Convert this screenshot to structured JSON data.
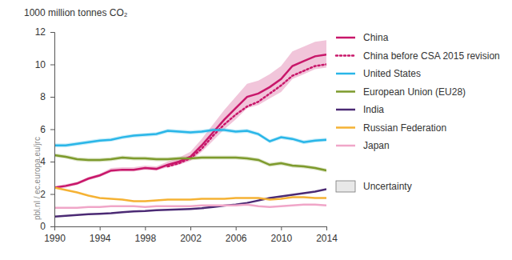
{
  "chart_data": {
    "type": "line",
    "ylabel": "1000 million tonnes CO₂",
    "source": "pbl.nl / ec.europa.eu/jrc",
    "uncertainty_label": "Uncertainty",
    "x": [
      1990,
      1991,
      1992,
      1993,
      1994,
      1995,
      1996,
      1997,
      1998,
      1999,
      2000,
      2001,
      2002,
      2003,
      2004,
      2005,
      2006,
      2007,
      2008,
      2009,
      2010,
      2011,
      2012,
      2013,
      2014
    ],
    "xlim": [
      1990,
      2014
    ],
    "xticks": [
      1990,
      1994,
      1998,
      2002,
      2006,
      2010,
      2014
    ],
    "ylim": [
      0,
      12
    ],
    "yticks": [
      0,
      2,
      4,
      6,
      8,
      10,
      12
    ],
    "grid": false,
    "series": [
      {
        "name": "China",
        "color": "#c8176a",
        "line_style": "solid",
        "values": [
          2.4,
          2.5,
          2.65,
          2.95,
          3.15,
          3.45,
          3.5,
          3.5,
          3.6,
          3.55,
          3.8,
          4.0,
          4.3,
          5.0,
          5.8,
          6.6,
          7.3,
          8.0,
          8.2,
          8.6,
          9.1,
          9.9,
          10.2,
          10.5,
          10.6
        ],
        "lower": [
          2.3,
          2.4,
          2.55,
          2.85,
          3.05,
          3.35,
          3.4,
          3.4,
          3.5,
          3.45,
          3.65,
          3.8,
          4.05,
          4.6,
          5.3,
          6.0,
          6.6,
          7.3,
          7.5,
          7.9,
          8.3,
          9.1,
          9.4,
          9.7,
          9.8
        ],
        "upper": [
          2.5,
          2.6,
          2.75,
          3.05,
          3.25,
          3.6,
          3.65,
          3.65,
          3.75,
          3.7,
          4.0,
          4.25,
          4.6,
          5.4,
          6.3,
          7.2,
          8.0,
          8.8,
          9.0,
          9.4,
          9.9,
          10.8,
          11.1,
          11.4,
          11.5
        ]
      },
      {
        "name": "China before CSA 2015 revision",
        "color": "#c8176a",
        "line_style": "dotted",
        "values": [
          null,
          null,
          null,
          null,
          null,
          null,
          null,
          null,
          null,
          null,
          3.7,
          3.9,
          4.2,
          4.8,
          5.6,
          6.3,
          6.9,
          7.4,
          7.7,
          8.2,
          8.7,
          9.3,
          9.6,
          9.9,
          10.0
        ]
      },
      {
        "name": "United States",
        "color": "#29b6e8",
        "line_style": "solid",
        "values": [
          5.0,
          5.0,
          5.1,
          5.2,
          5.3,
          5.35,
          5.5,
          5.6,
          5.65,
          5.7,
          5.9,
          5.85,
          5.8,
          5.85,
          5.95,
          5.95,
          5.85,
          5.9,
          5.7,
          5.25,
          5.5,
          5.4,
          5.2,
          5.3,
          5.35
        ],
        "lower": [
          4.88,
          4.88,
          4.98,
          5.08,
          5.18,
          5.23,
          5.38,
          5.48,
          5.53,
          5.58,
          5.78,
          5.73,
          5.68,
          5.73,
          5.83,
          5.83,
          5.73,
          5.78,
          5.58,
          5.13,
          5.38,
          5.28,
          5.08,
          5.18,
          5.23
        ],
        "upper": [
          5.12,
          5.12,
          5.22,
          5.32,
          5.42,
          5.47,
          5.62,
          5.72,
          5.77,
          5.82,
          6.02,
          5.97,
          5.92,
          5.97,
          6.07,
          6.07,
          5.97,
          6.02,
          5.82,
          5.37,
          5.62,
          5.52,
          5.32,
          5.42,
          5.47
        ]
      },
      {
        "name": "European Union (EU28)",
        "color": "#7d9a2c",
        "line_style": "solid",
        "values": [
          4.4,
          4.3,
          4.15,
          4.1,
          4.1,
          4.15,
          4.25,
          4.2,
          4.2,
          4.15,
          4.15,
          4.2,
          4.2,
          4.25,
          4.25,
          4.25,
          4.25,
          4.2,
          4.1,
          3.8,
          3.9,
          3.75,
          3.7,
          3.6,
          3.45
        ],
        "lower": [
          4.28,
          4.18,
          4.03,
          3.98,
          3.98,
          4.03,
          4.13,
          4.08,
          4.08,
          4.03,
          4.03,
          4.08,
          4.08,
          4.13,
          4.13,
          4.13,
          4.13,
          4.08,
          3.98,
          3.68,
          3.78,
          3.63,
          3.58,
          3.48,
          3.33
        ],
        "upper": [
          4.52,
          4.42,
          4.27,
          4.22,
          4.22,
          4.27,
          4.37,
          4.32,
          4.32,
          4.27,
          4.27,
          4.32,
          4.32,
          4.37,
          4.37,
          4.37,
          4.37,
          4.32,
          4.22,
          3.92,
          4.02,
          3.87,
          3.82,
          3.72,
          3.57
        ]
      },
      {
        "name": "India",
        "color": "#4b2a74",
        "line_style": "solid",
        "values": [
          0.6,
          0.65,
          0.7,
          0.75,
          0.78,
          0.82,
          0.88,
          0.92,
          0.95,
          1.0,
          1.02,
          1.05,
          1.08,
          1.12,
          1.2,
          1.28,
          1.35,
          1.45,
          1.6,
          1.75,
          1.85,
          1.95,
          2.05,
          2.15,
          2.3
        ]
      },
      {
        "name": "Russian Federation",
        "color": "#f5b234",
        "line_style": "solid",
        "values": [
          2.4,
          2.25,
          2.1,
          1.9,
          1.75,
          1.7,
          1.65,
          1.55,
          1.55,
          1.6,
          1.65,
          1.65,
          1.65,
          1.7,
          1.7,
          1.7,
          1.75,
          1.75,
          1.75,
          1.65,
          1.7,
          1.8,
          1.8,
          1.75,
          1.75
        ]
      },
      {
        "name": "Japan",
        "color": "#f0a6c8",
        "line_style": "solid",
        "values": [
          1.15,
          1.15,
          1.15,
          1.2,
          1.2,
          1.25,
          1.25,
          1.25,
          1.2,
          1.25,
          1.25,
          1.25,
          1.25,
          1.3,
          1.3,
          1.3,
          1.3,
          1.35,
          1.25,
          1.2,
          1.25,
          1.3,
          1.35,
          1.35,
          1.3
        ]
      }
    ]
  }
}
